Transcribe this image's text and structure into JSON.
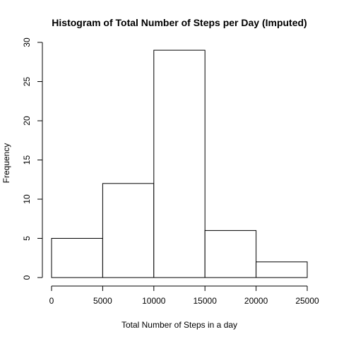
{
  "chart_data": {
    "type": "bar",
    "title": "Histogram of Total Number of Steps per Day (Imputed)",
    "xlabel": "Total Number of Steps in a day",
    "ylabel": "Frequency",
    "bins": [
      {
        "from": 0,
        "to": 5000,
        "value": 5
      },
      {
        "from": 5000,
        "to": 10000,
        "value": 12
      },
      {
        "from": 10000,
        "to": 15000,
        "value": 29
      },
      {
        "from": 15000,
        "to": 20000,
        "value": 6
      },
      {
        "from": 20000,
        "to": 25000,
        "value": 2
      }
    ],
    "xlim": [
      0,
      25000
    ],
    "ylim": [
      0,
      30
    ],
    "xticks": [
      "0",
      "5000",
      "10000",
      "15000",
      "20000",
      "25000"
    ],
    "yticks": [
      "0",
      "5",
      "10",
      "15",
      "20",
      "25",
      "30"
    ],
    "grid": false,
    "legend": "none"
  }
}
